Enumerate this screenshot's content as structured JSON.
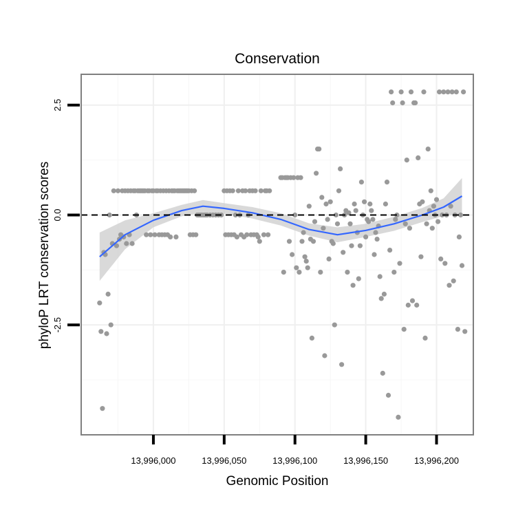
{
  "chart_data": {
    "type": "scatter",
    "title": "Conservation",
    "xlabel": "Genomic Position",
    "ylabel": "phyloP LRT conservation scores",
    "xlim": [
      13995949,
      13996226
    ],
    "ylim": [
      -5.0,
      3.2
    ],
    "x_ticks": [
      13996000,
      13996050,
      13996100,
      13996150,
      13996200
    ],
    "x_tick_labels": [
      "13,996,000",
      "13,996,050",
      "13,996,100",
      "13,996,150",
      "13,996,200"
    ],
    "y_ticks": [
      -2.5,
      0.0,
      2.5
    ],
    "y_tick_labels": [
      "-2.5",
      "0.0",
      "2.5"
    ],
    "reference_line": {
      "y": 0.0,
      "style": "dashed"
    },
    "grid": true,
    "colors": {
      "points": "#999999",
      "smooth": "#3366ff",
      "band": "#cfcfcf",
      "panel_border": "#7f7f7f"
    },
    "smooth": {
      "x": [
        13995962,
        13995980,
        13996000,
        13996020,
        13996035,
        13996050,
        13996070,
        13996090,
        13996110,
        13996130,
        13996150,
        13996170,
        13996190,
        13996205,
        13996218
      ],
      "y": [
        -0.95,
        -0.45,
        -0.12,
        0.1,
        0.2,
        0.15,
        0.05,
        -0.1,
        -0.33,
        -0.45,
        -0.35,
        -0.2,
        0.0,
        0.18,
        0.43
      ],
      "lower": [
        -1.5,
        -0.78,
        -0.28,
        -0.03,
        0.06,
        0.03,
        -0.08,
        -0.24,
        -0.47,
        -0.62,
        -0.5,
        -0.36,
        -0.16,
        -0.02,
        0.02
      ],
      "upper": [
        -0.4,
        -0.12,
        0.04,
        0.23,
        0.34,
        0.27,
        0.18,
        0.04,
        -0.19,
        -0.28,
        -0.2,
        -0.04,
        0.16,
        0.38,
        0.84
      ]
    },
    "points": [
      [
        13995962,
        -2.0
      ],
      [
        13995963,
        -2.65
      ],
      [
        13995964,
        -4.4
      ],
      [
        13995965,
        -0.85
      ],
      [
        13995966,
        -0.9
      ],
      [
        13995967,
        -2.7
      ],
      [
        13995968,
        -1.8
      ],
      [
        13995969,
        0.0
      ],
      [
        13995970,
        -2.5
      ],
      [
        13995971,
        -0.65
      ],
      [
        13995972,
        0.55
      ],
      [
        13995974,
        -0.7
      ],
      [
        13995975,
        0.55
      ],
      [
        13995976,
        -0.55
      ],
      [
        13995977,
        -0.45
      ],
      [
        13995978,
        0.55
      ],
      [
        13995979,
        -0.5
      ],
      [
        13995980,
        0.55
      ],
      [
        13995981,
        -0.65
      ],
      [
        13995982,
        0.55
      ],
      [
        13995983,
        -0.45
      ],
      [
        13995984,
        0.55
      ],
      [
        13995985,
        -0.65
      ],
      [
        13995986,
        0.55
      ],
      [
        13995987,
        0.55
      ],
      [
        13995988,
        0.0
      ],
      [
        13995989,
        0.55
      ],
      [
        13995990,
        0.55
      ],
      [
        13995991,
        0.55
      ],
      [
        13995992,
        0.55
      ],
      [
        13995993,
        0.55
      ],
      [
        13995994,
        0.55
      ],
      [
        13995995,
        -0.45
      ],
      [
        13995996,
        0.55
      ],
      [
        13995997,
        0.55
      ],
      [
        13995998,
        -0.45
      ],
      [
        13995999,
        0.55
      ],
      [
        13996000,
        0.55
      ],
      [
        13996001,
        -0.45
      ],
      [
        13996002,
        0.55
      ],
      [
        13996003,
        0.55
      ],
      [
        13996004,
        -0.45
      ],
      [
        13996005,
        0.55
      ],
      [
        13996006,
        -0.45
      ],
      [
        13996007,
        0.55
      ],
      [
        13996008,
        -0.45
      ],
      [
        13996009,
        0.55
      ],
      [
        13996010,
        -0.45
      ],
      [
        13996011,
        0.55
      ],
      [
        13996012,
        -0.5
      ],
      [
        13996013,
        0.55
      ],
      [
        13996014,
        0.55
      ],
      [
        13996015,
        0.55
      ],
      [
        13996016,
        -0.5
      ],
      [
        13996017,
        0.55
      ],
      [
        13996018,
        0.55
      ],
      [
        13996019,
        0.55
      ],
      [
        13996020,
        0.55
      ],
      [
        13996021,
        0.55
      ],
      [
        13996022,
        0.55
      ],
      [
        13996023,
        0.55
      ],
      [
        13996024,
        0.55
      ],
      [
        13996025,
        0.55
      ],
      [
        13996026,
        -0.45
      ],
      [
        13996027,
        0.55
      ],
      [
        13996028,
        -0.45
      ],
      [
        13996029,
        0.55
      ],
      [
        13996030,
        -0.45
      ],
      [
        13996031,
        0.0
      ],
      [
        13996032,
        0.0
      ],
      [
        13996033,
        0.0
      ],
      [
        13996034,
        0.0
      ],
      [
        13996035,
        0.0
      ],
      [
        13996036,
        0.0
      ],
      [
        13996037,
        0.0
      ],
      [
        13996038,
        0.0
      ],
      [
        13996040,
        0.0
      ],
      [
        13996042,
        0.0
      ],
      [
        13996044,
        0.0
      ],
      [
        13996046,
        0.0
      ],
      [
        13996048,
        0.0
      ],
      [
        13996050,
        0.55
      ],
      [
        13996051,
        -0.45
      ],
      [
        13996052,
        0.55
      ],
      [
        13996053,
        -0.45
      ],
      [
        13996054,
        0.55
      ],
      [
        13996055,
        -0.45
      ],
      [
        13996056,
        0.55
      ],
      [
        13996057,
        -0.45
      ],
      [
        13996058,
        0.0
      ],
      [
        13996059,
        -0.5
      ],
      [
        13996060,
        0.55
      ],
      [
        13996061,
        0.0
      ],
      [
        13996062,
        -0.45
      ],
      [
        13996063,
        0.55
      ],
      [
        13996064,
        -0.5
      ],
      [
        13996065,
        0.55
      ],
      [
        13996066,
        -0.45
      ],
      [
        13996067,
        0.0
      ],
      [
        13996068,
        0.55
      ],
      [
        13996069,
        -0.45
      ],
      [
        13996070,
        0.55
      ],
      [
        13996071,
        -0.45
      ],
      [
        13996072,
        0.55
      ],
      [
        13996073,
        -0.45
      ],
      [
        13996074,
        -0.5
      ],
      [
        13996075,
        -0.6
      ],
      [
        13996076,
        0.55
      ],
      [
        13996078,
        -0.45
      ],
      [
        13996079,
        0.55
      ],
      [
        13996080,
        0.55
      ],
      [
        13996081,
        -0.45
      ],
      [
        13996082,
        0.55
      ],
      [
        13996090,
        0.85
      ],
      [
        13996091,
        0.85
      ],
      [
        13996092,
        -1.3
      ],
      [
        13996093,
        0.85
      ],
      [
        13996094,
        0.85
      ],
      [
        13996095,
        0.85
      ],
      [
        13996096,
        -0.6
      ],
      [
        13996097,
        0.85
      ],
      [
        13996098,
        -0.9
      ],
      [
        13996099,
        0.85
      ],
      [
        13996100,
        0.0
      ],
      [
        13996101,
        -1.2
      ],
      [
        13996102,
        0.85
      ],
      [
        13996103,
        -1.3
      ],
      [
        13996104,
        0.85
      ],
      [
        13996105,
        -0.6
      ],
      [
        13996106,
        -0.4
      ],
      [
        13996107,
        -0.95
      ],
      [
        13996108,
        -1.05
      ],
      [
        13996109,
        -1.2
      ],
      [
        13996110,
        0.2
      ],
      [
        13996111,
        -0.55
      ],
      [
        13996112,
        -2.8
      ],
      [
        13996113,
        -0.6
      ],
      [
        13996114,
        -0.15
      ],
      [
        13996115,
        0.95
      ],
      [
        13996116,
        1.5
      ],
      [
        13996117,
        1.5
      ],
      [
        13996118,
        -1.3
      ],
      [
        13996119,
        0.4
      ],
      [
        13996120,
        -0.3
      ],
      [
        13996121,
        -3.2
      ],
      [
        13996122,
        0.25
      ],
      [
        13996123,
        -0.1
      ],
      [
        13996124,
        -1.0
      ],
      [
        13996125,
        0.3
      ],
      [
        13996126,
        -0.6
      ],
      [
        13996127,
        -0.65
      ],
      [
        13996128,
        -2.5
      ],
      [
        13996129,
        0.0
      ],
      [
        13996130,
        -0.2
      ],
      [
        13996131,
        0.55
      ],
      [
        13996132,
        1.05
      ],
      [
        13996133,
        -3.4
      ],
      [
        13996134,
        -0.85
      ],
      [
        13996135,
        0.0
      ],
      [
        13996136,
        0.1
      ],
      [
        13996137,
        -1.3
      ],
      [
        13996138,
        0.05
      ],
      [
        13996139,
        -0.2
      ],
      [
        13996140,
        -0.7
      ],
      [
        13996141,
        -1.6
      ],
      [
        13996142,
        0.25
      ],
      [
        13996143,
        0.1
      ],
      [
        13996144,
        -0.4
      ],
      [
        13996145,
        -1.45
      ],
      [
        13996146,
        -0.7
      ],
      [
        13996147,
        0.75
      ],
      [
        13996148,
        0.0
      ],
      [
        13996149,
        0.3
      ],
      [
        13996150,
        -0.5
      ],
      [
        13996151,
        -0.1
      ],
      [
        13996152,
        -0.15
      ],
      [
        13996153,
        0.25
      ],
      [
        13996154,
        0.1
      ],
      [
        13996155,
        -0.1
      ],
      [
        13996156,
        -0.9
      ],
      [
        13996157,
        -0.4
      ],
      [
        13996158,
        -0.55
      ],
      [
        13996159,
        -0.25
      ],
      [
        13996160,
        -1.4
      ],
      [
        13996161,
        -1.9
      ],
      [
        13996162,
        -3.6
      ],
      [
        13996163,
        -1.8
      ],
      [
        13996164,
        0.25
      ],
      [
        13996165,
        0.75
      ],
      [
        13996166,
        -4.1
      ],
      [
        13996167,
        -0.8
      ],
      [
        13996168,
        2.8
      ],
      [
        13996169,
        2.55
      ],
      [
        13996170,
        -1.3
      ],
      [
        13996171,
        -0.1
      ],
      [
        13996172,
        0.0
      ],
      [
        13996173,
        -4.6
      ],
      [
        13996174,
        -1.1
      ],
      [
        13996175,
        2.8
      ],
      [
        13996176,
        2.55
      ],
      [
        13996177,
        -2.6
      ],
      [
        13996178,
        -0.2
      ],
      [
        13996179,
        1.25
      ],
      [
        13996180,
        -2.05
      ],
      [
        13996181,
        -0.3
      ],
      [
        13996182,
        2.8
      ],
      [
        13996183,
        -1.95
      ],
      [
        13996184,
        2.55
      ],
      [
        13996185,
        2.55
      ],
      [
        13996186,
        -2.05
      ],
      [
        13996187,
        1.3
      ],
      [
        13996188,
        0.25
      ],
      [
        13996189,
        -0.95
      ],
      [
        13996190,
        0.3
      ],
      [
        13996191,
        2.8
      ],
      [
        13996192,
        -2.8
      ],
      [
        13996193,
        -0.2
      ],
      [
        13996194,
        1.5
      ],
      [
        13996195,
        0.1
      ],
      [
        13996196,
        0.55
      ],
      [
        13996197,
        -0.3
      ],
      [
        13996198,
        0.2
      ],
      [
        13996199,
        0.0
      ],
      [
        13996200,
        0.35
      ],
      [
        13996201,
        -0.15
      ],
      [
        13996202,
        2.8
      ],
      [
        13996203,
        -1.0
      ],
      [
        13996204,
        0.0
      ],
      [
        13996205,
        2.8
      ],
      [
        13996206,
        -1.1
      ],
      [
        13996207,
        0.0
      ],
      [
        13996208,
        2.8
      ],
      [
        13996209,
        -1.6
      ],
      [
        13996210,
        0.2
      ],
      [
        13996211,
        2.8
      ],
      [
        13996212,
        -1.5
      ],
      [
        13996213,
        0.0
      ],
      [
        13996214,
        2.8
      ],
      [
        13996215,
        -2.6
      ],
      [
        13996216,
        -0.5
      ],
      [
        13996217,
        0.0
      ],
      [
        13996218,
        -1.15
      ],
      [
        13996219,
        2.8
      ],
      [
        13996220,
        -2.65
      ]
    ]
  }
}
